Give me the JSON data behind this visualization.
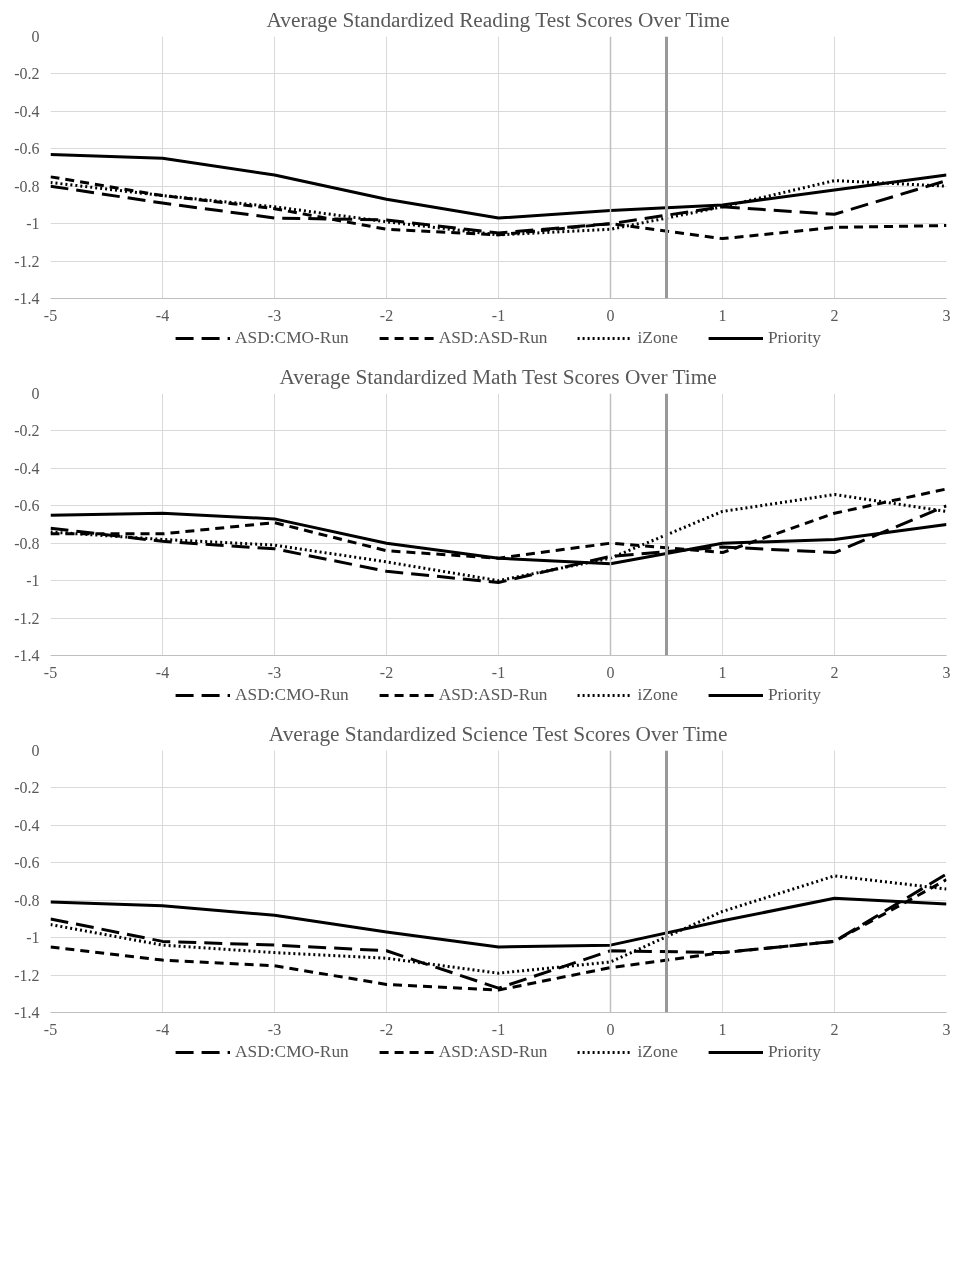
{
  "chart_data": [
    {
      "type": "line",
      "title": "Average Standardized Reading Test Scores Over Time",
      "x": [
        -5,
        -4,
        -3,
        -2,
        -1,
        0,
        1,
        2,
        3
      ],
      "xlim": [
        -5,
        3
      ],
      "xticks": [
        -5,
        -4,
        -3,
        -2,
        -1,
        0,
        1,
        2,
        3
      ],
      "ylim": [
        -1.4,
        0
      ],
      "yticks": [
        -1.4,
        -1.2,
        -1,
        -0.8,
        -0.6,
        -0.4,
        -0.2,
        0
      ],
      "grid": true,
      "legend": "bottom",
      "marker": "none",
      "ref_lines": [
        {
          "axis": "x",
          "value": 0,
          "color": "#bfbfbf"
        },
        {
          "axis": "x",
          "value": 0.5,
          "color": "#999999"
        }
      ],
      "series": [
        {
          "name": "ASD:CMO-Run",
          "color": "#000000",
          "line_style": "dashed",
          "values": [
            -0.8,
            -0.89,
            -0.97,
            -0.98,
            -1.05,
            -1.0,
            -0.91,
            -0.95,
            -0.77
          ]
        },
        {
          "name": "ASD:ASD-Run",
          "color": "#000000",
          "line_style": "dashed",
          "values": [
            -0.75,
            -0.85,
            -0.92,
            -1.03,
            -1.06,
            -1.0,
            -1.08,
            -1.02,
            -1.01
          ]
        },
        {
          "name": "iZone",
          "color": "#000000",
          "line_style": "dotted",
          "values": [
            -0.78,
            -0.85,
            -0.91,
            -0.99,
            -1.06,
            -1.03,
            -0.91,
            -0.77,
            -0.8
          ]
        },
        {
          "name": "Priority",
          "color": "#000000",
          "line_style": "solid",
          "values": [
            -0.63,
            -0.65,
            -0.74,
            -0.87,
            -0.97,
            -0.93,
            -0.9,
            -0.82,
            -0.74
          ]
        }
      ]
    },
    {
      "type": "line",
      "title": "Average Standardized Math Test Scores Over Time",
      "x": [
        -5,
        -4,
        -3,
        -2,
        -1,
        0,
        1,
        2,
        3
      ],
      "xlim": [
        -5,
        3
      ],
      "xticks": [
        -5,
        -4,
        -3,
        -2,
        -1,
        0,
        1,
        2,
        3
      ],
      "ylim": [
        -1.4,
        0
      ],
      "yticks": [
        -1.4,
        -1.2,
        -1,
        -0.8,
        -0.6,
        -0.4,
        -0.2,
        0
      ],
      "grid": true,
      "legend": "bottom",
      "marker": "none",
      "ref_lines": [
        {
          "axis": "x",
          "value": 0,
          "color": "#bfbfbf"
        },
        {
          "axis": "x",
          "value": 0.5,
          "color": "#999999"
        }
      ],
      "series": [
        {
          "name": "ASD:CMO-Run",
          "color": "#000000",
          "line_style": "dashed",
          "values": [
            -0.72,
            -0.79,
            -0.83,
            -0.95,
            -1.01,
            -0.87,
            -0.82,
            -0.85,
            -0.6
          ]
        },
        {
          "name": "ASD:ASD-Run",
          "color": "#000000",
          "line_style": "dashed",
          "values": [
            -0.75,
            -0.75,
            -0.69,
            -0.84,
            -0.88,
            -0.8,
            -0.85,
            -0.64,
            -0.51
          ]
        },
        {
          "name": "iZone",
          "color": "#000000",
          "line_style": "dotted",
          "values": [
            -0.74,
            -0.78,
            -0.81,
            -0.9,
            -1.0,
            -0.88,
            -0.63,
            -0.54,
            -0.63
          ]
        },
        {
          "name": "Priority",
          "color": "#000000",
          "line_style": "solid",
          "values": [
            -0.65,
            -0.64,
            -0.67,
            -0.8,
            -0.88,
            -0.91,
            -0.8,
            -0.78,
            -0.7
          ]
        }
      ]
    },
    {
      "type": "line",
      "title": "Average Standardized Science Test Scores Over Time",
      "x": [
        -5,
        -4,
        -3,
        -2,
        -1,
        0,
        1,
        2,
        3
      ],
      "xlim": [
        -5,
        3
      ],
      "xticks": [
        -5,
        -4,
        -3,
        -2,
        -1,
        0,
        1,
        2,
        3
      ],
      "ylim": [
        -1.4,
        0
      ],
      "yticks": [
        -1.4,
        -1.2,
        -1,
        -0.8,
        -0.6,
        -0.4,
        -0.2,
        0
      ],
      "grid": true,
      "legend": "bottom",
      "marker": "none",
      "ref_lines": [
        {
          "axis": "x",
          "value": 0,
          "color": "#bfbfbf"
        },
        {
          "axis": "x",
          "value": 0.5,
          "color": "#999999"
        }
      ],
      "series": [
        {
          "name": "ASD:CMO-Run",
          "color": "#000000",
          "line_style": "dashed",
          "values": [
            -0.9,
            -1.02,
            -1.04,
            -1.07,
            -1.27,
            -1.07,
            -1.08,
            -1.02,
            -0.66
          ]
        },
        {
          "name": "ASD:ASD-Run",
          "color": "#000000",
          "line_style": "dashed",
          "values": [
            -1.05,
            -1.12,
            -1.15,
            -1.25,
            -1.28,
            -1.16,
            -1.08,
            -1.02,
            -0.69
          ]
        },
        {
          "name": "iZone",
          "color": "#000000",
          "line_style": "dotted",
          "values": [
            -0.93,
            -1.04,
            -1.08,
            -1.11,
            -1.19,
            -1.13,
            -0.86,
            -0.67,
            -0.74
          ]
        },
        {
          "name": "Priority",
          "color": "#000000",
          "line_style": "solid",
          "values": [
            -0.81,
            -0.83,
            -0.88,
            -0.97,
            -1.05,
            -1.04,
            -0.91,
            -0.79,
            -0.82
          ]
        }
      ]
    }
  ]
}
